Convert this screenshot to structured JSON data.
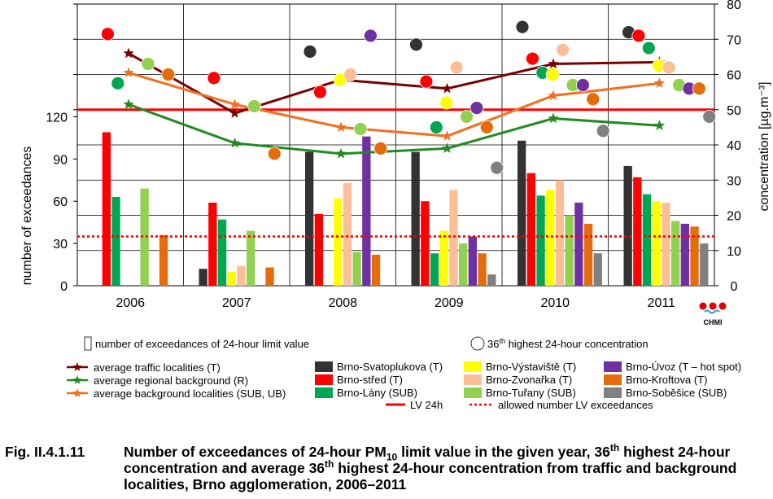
{
  "chart_data": {
    "type": "bar",
    "categories": [
      "2006",
      "2007",
      "2008",
      "2009",
      "2010",
      "2011"
    ],
    "left_axis": {
      "label": "number of exceedances",
      "range": [
        0,
        200
      ],
      "ticks": [
        "0",
        "30",
        "60",
        "90",
        "120"
      ],
      "tick_values": [
        0,
        30,
        60,
        90,
        120
      ]
    },
    "right_axis": {
      "label": "concentration [µg.m⁻³]",
      "range": [
        0,
        80
      ],
      "ticks": [
        "0",
        "10",
        "20",
        "30",
        "40",
        "50",
        "60",
        "70",
        "80"
      ],
      "tick_values": [
        0,
        10,
        20,
        30,
        40,
        50,
        60,
        70,
        80
      ]
    },
    "bar_series": [
      {
        "name": "Brno-Svatoplukova (T)",
        "color": "#333333",
        "values": [
          null,
          12,
          95,
          95,
          103,
          85
        ]
      },
      {
        "name": "Brno-střed (T)",
        "color": "#ff0000",
        "values": [
          109,
          59,
          51,
          60,
          80,
          77
        ]
      },
      {
        "name": "Brno-Lány (SUB)",
        "color": "#00a651",
        "values": [
          63,
          47,
          null,
          23,
          64,
          65
        ]
      },
      {
        "name": "Brno-Výstaviště  (T)",
        "color": "#ffff00",
        "values": [
          null,
          10,
          62,
          39,
          68,
          60
        ]
      },
      {
        "name": "Brno-Zvonařka  (T)",
        "color": "#fbbf98",
        "values": [
          null,
          14,
          73,
          68,
          75,
          59
        ]
      },
      {
        "name": "Brno-Tuřany (SUB)",
        "color": "#92d050",
        "values": [
          69,
          39,
          24,
          30,
          50,
          46
        ]
      },
      {
        "name": "Brno-Úvoz (T – hot spot)",
        "color": "#7030a0",
        "values": [
          null,
          null,
          106,
          35,
          59,
          44
        ]
      },
      {
        "name": "Brno-Kroftova (T)",
        "color": "#e46c0a",
        "values": [
          36,
          13,
          22,
          23,
          44,
          42
        ]
      },
      {
        "name": "Brno-Soběšice (SUB)",
        "color": "#808080",
        "values": [
          null,
          null,
          null,
          8,
          23,
          30
        ]
      }
    ],
    "points_36th_highest": [
      {
        "name": "Brno-Svatoplukova (T)",
        "values": [
          null,
          null,
          66.5,
          68.5,
          73.5,
          72
        ]
      },
      {
        "name": "Brno-střed (T)",
        "values": [
          71.5,
          59,
          55,
          58,
          64.5,
          71
        ]
      },
      {
        "name": "Brno-Lány (SUB)",
        "values": [
          57.5,
          null,
          null,
          45,
          60.5,
          67.5
        ]
      },
      {
        "name": "Brno-Výstaviště  (T)",
        "values": [
          null,
          null,
          58.5,
          52,
          60,
          62.5
        ]
      },
      {
        "name": "Brno-Zvonařka  (T)",
        "values": [
          null,
          null,
          60,
          62,
          67,
          62
        ]
      },
      {
        "name": "Brno-Tuřany (SUB)",
        "values": [
          63,
          51,
          44.5,
          48,
          57,
          57
        ]
      },
      {
        "name": "Brno-Úvoz (T – hot spot)",
        "values": [
          null,
          null,
          71,
          50.5,
          57,
          56
        ]
      },
      {
        "name": "Brno-Kroftova (T)",
        "values": [
          60,
          37.5,
          39,
          45,
          53,
          56
        ]
      },
      {
        "name": "Brno-Soběšice (SUB)",
        "values": [
          null,
          null,
          null,
          33.5,
          44,
          48
        ]
      }
    ],
    "average_lines": [
      {
        "name": "average traffic localities (T)",
        "color": "#7b0000",
        "values": [
          66,
          49,
          58.5,
          56,
          63,
          63.5
        ]
      },
      {
        "name": "average regional background (R)",
        "color": "#218a21",
        "values": [
          51.5,
          40.5,
          37.5,
          39,
          47.5,
          45.5
        ]
      },
      {
        "name": "average background localities (SUB, UB)",
        "color": "#f07020",
        "values": [
          60.5,
          51.5,
          45,
          42.5,
          54,
          57.5
        ]
      }
    ],
    "lv_24h": {
      "label": "LV 24h",
      "value": 50,
      "color": "#ff0000"
    },
    "allowed_exceedances": {
      "label": "allowed number LV exceedances",
      "value": 35,
      "color": "#ff0000"
    },
    "legend": {
      "bar_marker": "number of exceedances of 24-hour limit value",
      "circle_marker_sup": "36",
      "circle_marker_sup_suffix": "th",
      "circle_marker_rest": "highest 24-hour concentration"
    }
  },
  "logo": {
    "text": "CHMI"
  },
  "caption": {
    "number": "Fig. II.4.1.11",
    "text_html": "Number of exceedances of 24-hour PM<sub>10</sub> limit value in the given year, 36<sup>th</sup> highest 24-hour concentration and average 36<sup>th</sup> highest 24-hour concentration from traffic and background localities, Brno agglomeration, 2006–2011"
  }
}
